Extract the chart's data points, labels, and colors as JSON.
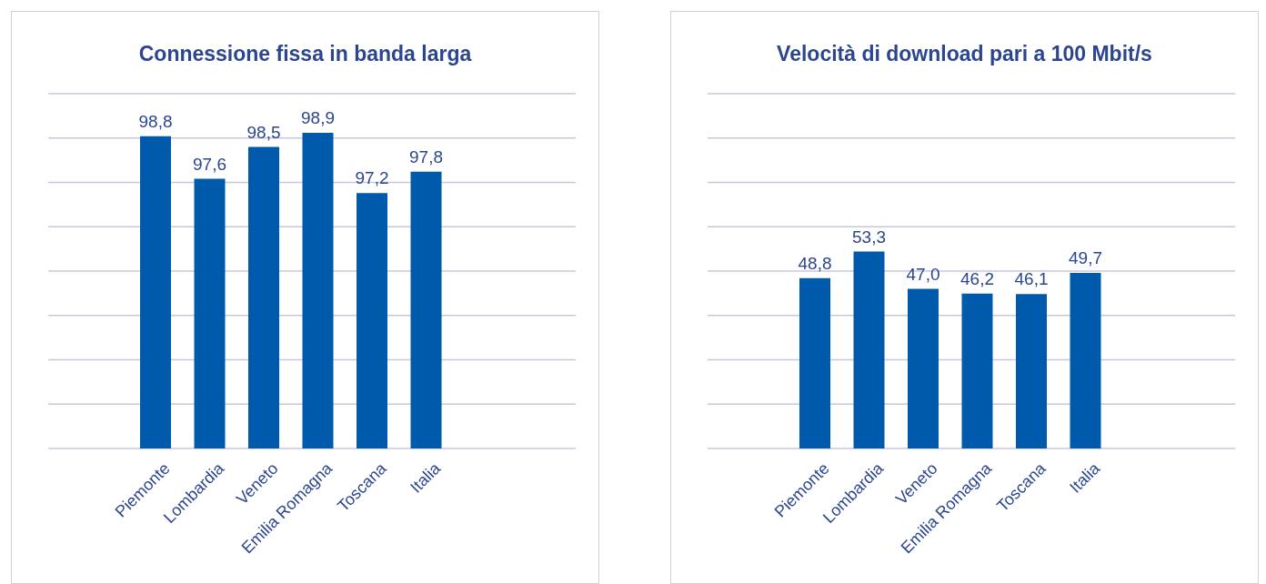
{
  "chart_data": [
    {
      "type": "bar",
      "title": "Connessione fissa in banda larga",
      "categories": [
        "Piemonte",
        "Lombardia",
        "Veneto",
        "Emilia Romagna",
        "Toscana",
        "Italia"
      ],
      "values": [
        98.8,
        97.6,
        98.5,
        98.9,
        97.2,
        97.8
      ],
      "value_labels": [
        "98,8",
        "97,6",
        "98,5",
        "98,9",
        "97,2",
        "97,8"
      ],
      "color": "#005aab",
      "ylim": [
        90,
        100
      ],
      "yticks": [
        {
          "value": 90,
          "label": null
        },
        {
          "value": 91.25,
          "label": null
        },
        {
          "value": 92.5,
          "label": null
        },
        {
          "value": 93.75,
          "label": null
        },
        {
          "value": 95,
          "label": null
        },
        {
          "value": 96.25,
          "label": null
        },
        {
          "value": 97.5,
          "label": null
        },
        {
          "value": 98.75,
          "label": null
        },
        {
          "value": 100,
          "label": null
        }
      ],
      "grid": "y",
      "tick_labels": "x"
    },
    {
      "type": "bar",
      "title": "Velocità di download pari a 100 Mbit/s",
      "categories": [
        "Piemonte",
        "Lombardia",
        "Veneto",
        "Emilia Romagna",
        "Toscana",
        "Italia"
      ],
      "values": [
        48.8,
        53.3,
        47.0,
        46.2,
        46.1,
        49.7
      ],
      "value_labels": [
        "48,8",
        "53,3",
        "47,0",
        "46,2",
        "46,1",
        "49,7"
      ],
      "color": "#005aab",
      "ylim": [
        20,
        80
      ],
      "yticks": [
        {
          "value": 20,
          "label": null
        },
        {
          "value": 27.5,
          "label": null
        },
        {
          "value": 35,
          "label": null
        },
        {
          "value": 42.5,
          "label": null
        },
        {
          "value": 50,
          "label": null
        },
        {
          "value": 57.5,
          "label": null
        },
        {
          "value": 65,
          "label": null
        },
        {
          "value": 72.5,
          "label": null
        },
        {
          "value": 80,
          "label": null
        }
      ],
      "grid": "y",
      "tick_labels": "x"
    }
  ]
}
